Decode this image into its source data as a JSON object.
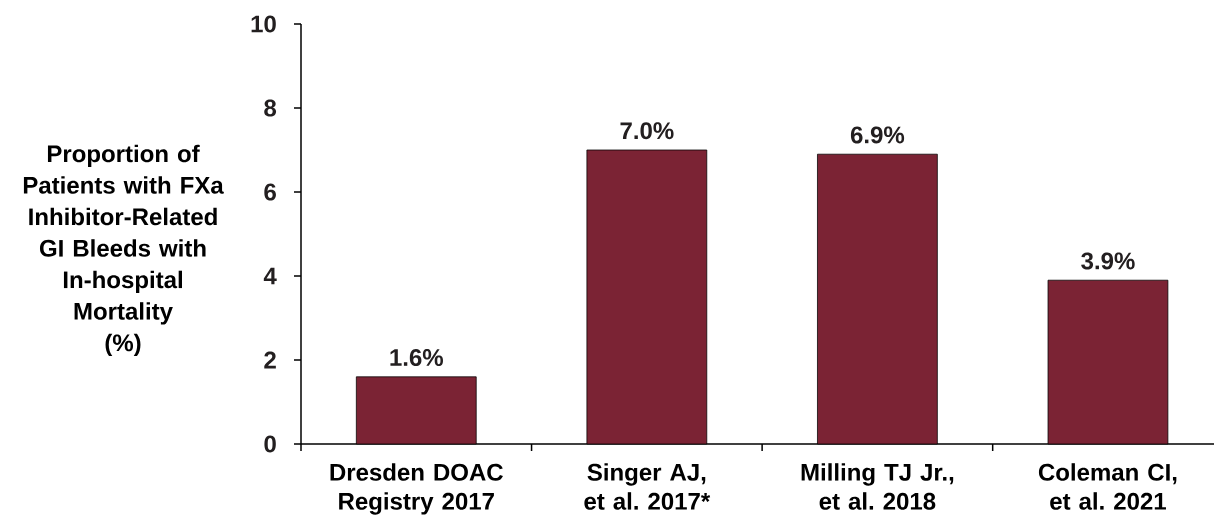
{
  "chart_data": {
    "type": "bar",
    "ylabel": "Proportion of Patients with FXa Inhibitor-Related GI Bleeds with In-hospital Mortality (%)",
    "categories": [
      "Dresden DOAC Registry 2017",
      "Singer AJ, et al. 2017*",
      "Milling TJ Jr., et al. 2018",
      "Coleman CI, et al. 2021"
    ],
    "values": [
      1.6,
      7.0,
      6.9,
      3.9
    ],
    "color": "#7b2334",
    "value_labels": [
      "1.6%",
      "7.0%",
      "6.9%",
      "3.9%"
    ],
    "ylim": [
      0,
      10
    ],
    "yticks": [
      0,
      2,
      4,
      6,
      8,
      10
    ],
    "grid": false
  }
}
